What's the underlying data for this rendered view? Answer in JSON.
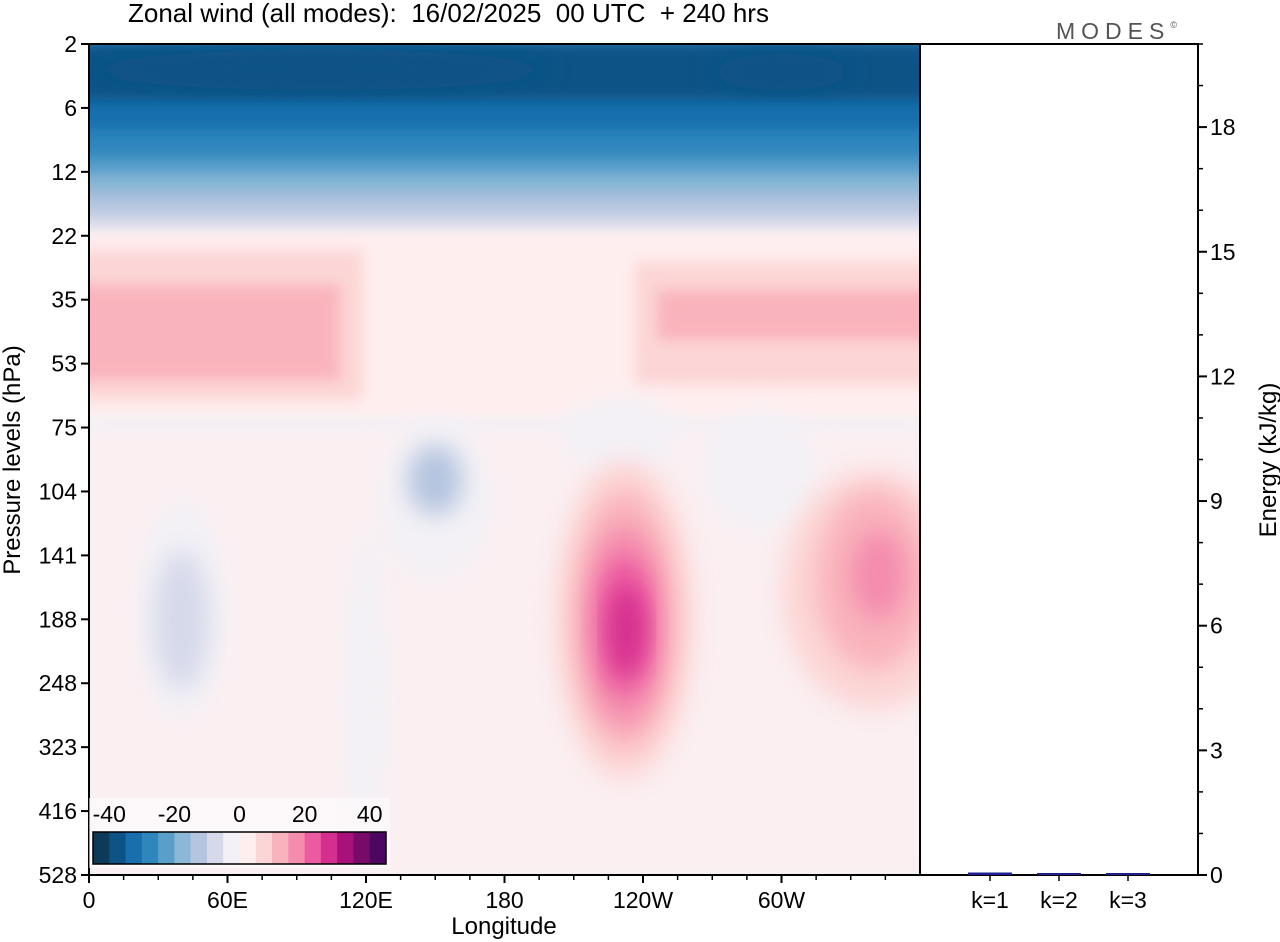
{
  "title": "Zonal wind (all modes):  16/02/2025  00 UTC  + 240 hrs",
  "brand": "MODES",
  "brand_mark": "©",
  "chart_data": [
    {
      "type": "heatmap",
      "title": "Zonal wind (all modes):  16/02/2025  00 UTC  + 240 hrs",
      "xlabel": "Longitude",
      "ylabel": "Pressure levels (hPa)",
      "x_ticks": [
        "0",
        "60E",
        "120E",
        "180",
        "120W",
        "60W"
      ],
      "x_tick_degrees": [
        0,
        60,
        120,
        180,
        240,
        300
      ],
      "xlim": [
        0,
        360
      ],
      "y_ticks": [
        "2",
        "6",
        "12",
        "22",
        "35",
        "53",
        "75",
        "104",
        "141",
        "188",
        "248",
        "323",
        "416",
        "528"
      ],
      "y_axis": "pressure, top 2 hPa to bottom 528 hPa, ticks evenly spaced",
      "colorbar": {
        "tick_labels": [
          "-40",
          "-20",
          "0",
          "20",
          "40"
        ],
        "tick_values": [
          -40,
          -20,
          0,
          20,
          40
        ],
        "range": [
          -45,
          45
        ],
        "step": 5,
        "colors": [
          "#0e3a5a",
          "#0d5386",
          "#1770ad",
          "#2e86bd",
          "#5a9fca",
          "#8cb7d6",
          "#b5c5df",
          "#d6d9ea",
          "#f3f1f6",
          "#ffeeee",
          "#fcd6d6",
          "#f9b3bc",
          "#f48cae",
          "#ec5aa0",
          "#d42e8f",
          "#a8107a",
          "#780a6a",
          "#4c0861"
        ]
      },
      "features": [
        {
          "kind": "easterly core",
          "lon": [
            5,
            185
          ],
          "level": "2-6 hPa",
          "value": -40
        },
        {
          "kind": "easterly core",
          "lon": [
            280,
            345
          ],
          "level": "2-6 hPa",
          "value": -40
        },
        {
          "kind": "westerly max",
          "lon": [
            10,
            120
          ],
          "level": "35-53 hPa",
          "value": 10
        },
        {
          "kind": "westerly max",
          "lon": [
            250,
            360
          ],
          "level": "35-53 hPa",
          "value": 7
        },
        {
          "kind": "easterly min",
          "lon": [
            20,
            60
          ],
          "level": "141-248 hPa",
          "value": -12
        },
        {
          "kind": "easterly min",
          "lon": [
            120,
            175
          ],
          "level": "75-141 hPa",
          "value": -15
        },
        {
          "kind": "easterly min",
          "lon": [
            220,
            260
          ],
          "level": "75-104 hPa",
          "value": -6
        },
        {
          "kind": "easterly min",
          "lon": [
            265,
            320
          ],
          "level": "75-141 hPa",
          "value": -7
        },
        {
          "kind": "westerly jet",
          "lon": [
            200,
            270
          ],
          "level": "141-248 hPa",
          "value": 30
        },
        {
          "kind": "westerly jet",
          "lon": [
            310,
            360
          ],
          "level": "141-248 hPa",
          "value": 18
        }
      ]
    },
    {
      "type": "bar",
      "categories": [
        "k=1",
        "k=2",
        "k=3"
      ],
      "values": [
        0.06,
        0.03,
        0.02
      ],
      "ylabel": "Energy (kJ/kg)",
      "y_ticks": [
        "0",
        "3",
        "6",
        "9",
        "12",
        "15",
        "18"
      ],
      "ylim": [
        0,
        20
      ],
      "bar_color": "#1f1f8f"
    }
  ]
}
